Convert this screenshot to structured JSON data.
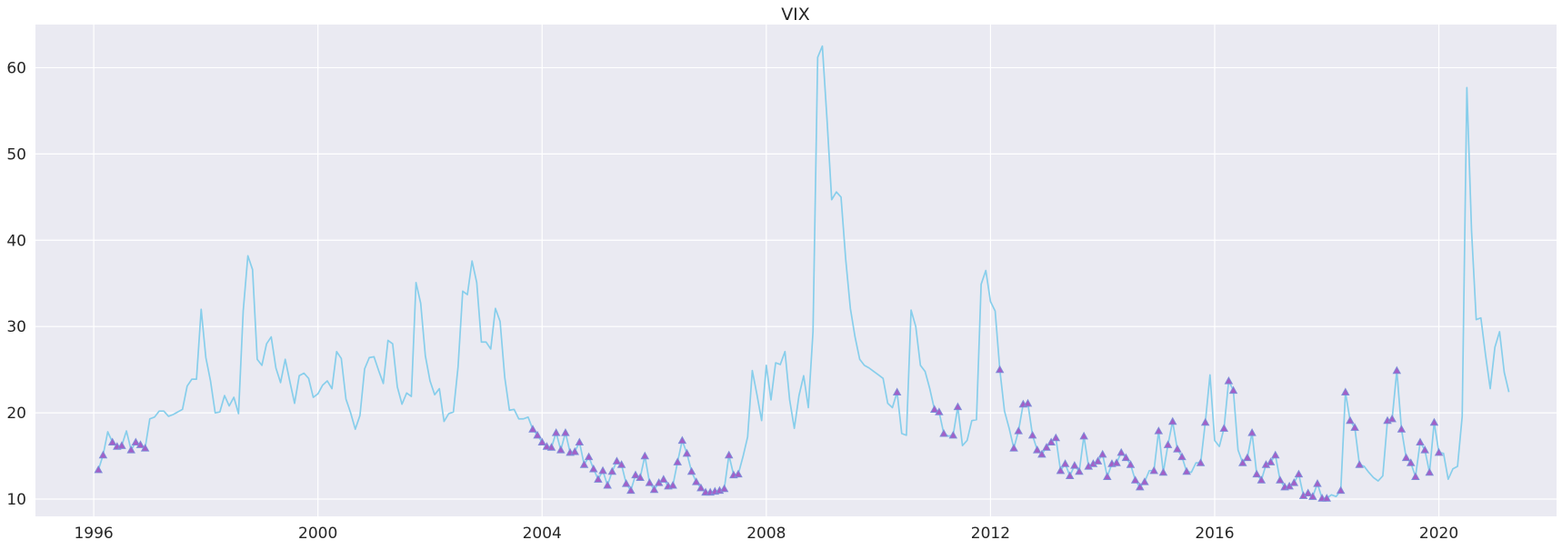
{
  "chart_data": {
    "type": "line",
    "title": "VIX",
    "xlabel": "",
    "ylabel": "",
    "x_start": "1996-02",
    "x_step": "monthly",
    "xlim": [
      1994.96,
      2022.1
    ],
    "ylim": [
      8,
      65
    ],
    "grid": true,
    "legend": "none",
    "xticks": [
      1996,
      2000,
      2004,
      2008,
      2012,
      2016,
      2020
    ],
    "xtick_labels": [
      "1996",
      "2000",
      "2004",
      "2008",
      "2012",
      "2016",
      "2020"
    ],
    "yticks": [
      10,
      20,
      30,
      40,
      50,
      60
    ],
    "ytick_labels": [
      "10",
      "20",
      "30",
      "40",
      "50",
      "60"
    ],
    "series": [
      {
        "name": "",
        "color": "#87ceeb",
        "values": [
          13.4,
          15.1,
          17.8,
          16.6,
          16.1,
          16.2,
          17.9,
          15.7,
          16.6,
          16.3,
          15.9,
          19.3,
          19.5,
          20.2,
          20.2,
          19.6,
          19.8,
          20.1,
          20.4,
          23.1,
          23.9,
          23.9,
          32.0,
          26.4,
          23.7,
          20.0,
          20.1,
          22.0,
          20.8,
          21.8,
          19.9,
          31.8,
          38.2,
          36.6,
          26.2,
          25.5,
          28.0,
          28.8,
          25.2,
          23.5,
          26.2,
          23.6,
          21.1,
          24.3,
          24.6,
          24.0,
          21.8,
          22.2,
          23.2,
          23.7,
          22.8,
          27.1,
          26.3,
          21.6,
          20.0,
          18.1,
          19.7,
          25.1,
          26.4,
          26.5,
          24.9,
          23.4,
          28.4,
          28.0,
          23.0,
          21.0,
          22.3,
          21.9,
          35.1,
          32.7,
          26.6,
          23.7,
          22.1,
          22.8,
          19.0,
          19.9,
          20.1,
          25.3,
          34.1,
          33.7,
          37.6,
          35.1,
          28.2,
          28.2,
          27.4,
          32.1,
          30.6,
          24.1,
          20.3,
          20.4,
          19.3,
          19.3,
          19.5,
          18.1,
          17.4,
          16.6,
          16.1,
          16.0,
          17.7,
          15.7,
          17.7,
          15.4,
          15.5,
          16.6,
          14.0,
          14.9,
          13.5,
          12.3,
          13.3,
          11.6,
          13.2,
          14.4,
          14.0,
          11.8,
          11.0,
          12.8,
          12.5,
          15.0,
          11.9,
          11.1,
          11.9,
          12.3,
          11.5,
          11.6,
          14.3,
          16.8,
          15.3,
          13.2,
          12.0,
          11.3,
          10.8,
          10.8,
          10.9,
          11.0,
          11.2,
          15.1,
          12.8,
          12.9,
          14.9,
          17.2,
          24.9,
          22.1,
          19.1,
          25.5,
          21.5,
          25.8,
          25.6,
          27.1,
          21.5,
          18.2,
          22.0,
          24.3,
          20.6,
          29.4,
          61.2,
          62.5,
          54.0,
          44.7,
          45.6,
          45.0,
          37.8,
          32.1,
          28.8,
          26.2,
          25.5,
          25.2,
          24.8,
          24.4,
          24.0,
          21.1,
          20.6,
          22.4,
          17.6,
          17.4,
          31.9,
          30.0,
          25.5,
          24.8,
          22.8,
          20.4,
          20.1,
          17.6,
          17.3,
          17.4,
          20.7,
          16.2,
          16.8,
          19.1,
          19.2,
          34.9,
          36.5,
          32.9,
          31.8,
          25.0,
          20.2,
          18.2,
          15.9,
          17.9,
          21.0,
          21.1,
          17.4,
          15.7,
          15.2,
          16.0,
          16.6,
          17.1,
          13.3,
          14.1,
          12.7,
          13.9,
          13.2,
          17.3,
          13.8,
          14.1,
          14.4,
          15.2,
          12.6,
          14.1,
          14.2,
          15.4,
          14.8,
          14.0,
          12.2,
          11.4,
          12.0,
          13.3,
          13.3,
          17.9,
          13.1,
          16.3,
          19.0,
          15.8,
          14.9,
          13.2,
          13.1,
          14.2,
          14.2,
          18.9,
          24.4,
          16.8,
          16.1,
          18.2,
          23.7,
          22.6,
          15.7,
          14.2,
          14.8,
          17.7,
          12.9,
          12.2,
          14.0,
          14.3,
          15.1,
          12.2,
          11.4,
          11.5,
          11.9,
          12.9,
          10.4,
          10.7,
          10.3,
          11.8,
          10.1,
          10.1,
          10.5,
          10.3,
          11.0,
          22.4,
          19.1,
          18.3,
          14.0,
          13.8,
          13.1,
          12.5,
          12.1,
          12.7,
          19.1,
          19.3,
          24.9,
          18.1,
          14.8,
          14.2,
          12.6,
          16.6,
          15.7,
          13.1,
          18.9,
          15.4,
          15.3,
          12.3,
          13.5,
          13.8,
          19.6,
          57.7,
          41.1,
          30.8,
          31.0,
          26.7,
          22.8,
          27.6,
          29.4,
          24.7,
          22.4
        ]
      }
    ],
    "markers": {
      "shape": "triangle",
      "fill": "#a35fc7",
      "edge": "#7d8fd9",
      "x": [
        "1996-02",
        "1996-03",
        "1996-05",
        "1996-06",
        "1996-07",
        "1996-09",
        "1996-10",
        "1996-11",
        "1996-12",
        "2003-11",
        "2003-12",
        "2004-01",
        "2004-02",
        "2004-03",
        "2004-04",
        "2004-05",
        "2004-06",
        "2004-07",
        "2004-08",
        "2004-09",
        "2004-10",
        "2004-11",
        "2004-12",
        "2005-01",
        "2005-02",
        "2005-03",
        "2005-04",
        "2005-05",
        "2005-06",
        "2005-07",
        "2005-08",
        "2005-09",
        "2005-10",
        "2005-11",
        "2005-12",
        "2006-01",
        "2006-02",
        "2006-03",
        "2006-04",
        "2006-05",
        "2006-06",
        "2006-07",
        "2006-08",
        "2006-09",
        "2006-10",
        "2006-11",
        "2006-12",
        "2007-01",
        "2007-02",
        "2007-03",
        "2007-04",
        "2007-05",
        "2007-06",
        "2007-07",
        "2010-05",
        "2011-01",
        "2011-02",
        "2011-03",
        "2011-05",
        "2011-06",
        "2012-03",
        "2012-06",
        "2012-07",
        "2012-08",
        "2012-09",
        "2012-10",
        "2012-11",
        "2012-12",
        "2013-01",
        "2013-02",
        "2013-03",
        "2013-04",
        "2013-05",
        "2013-06",
        "2013-07",
        "2013-08",
        "2013-09",
        "2013-10",
        "2013-11",
        "2013-12",
        "2014-01",
        "2014-02",
        "2014-03",
        "2014-04",
        "2014-05",
        "2014-06",
        "2014-07",
        "2014-08",
        "2014-09",
        "2014-10",
        "2014-12",
        "2015-01",
        "2015-02",
        "2015-03",
        "2015-04",
        "2015-05",
        "2015-06",
        "2015-07",
        "2015-10",
        "2015-11",
        "2016-03",
        "2016-04",
        "2016-05",
        "2016-07",
        "2016-08",
        "2016-09",
        "2016-10",
        "2016-11",
        "2016-12",
        "2017-01",
        "2017-02",
        "2017-03",
        "2017-04",
        "2017-05",
        "2017-06",
        "2017-07",
        "2017-08",
        "2017-09",
        "2017-10",
        "2017-11",
        "2017-12",
        "2018-01",
        "2018-04",
        "2018-05",
        "2018-06",
        "2018-07",
        "2018-08",
        "2019-02",
        "2019-03",
        "2019-04",
        "2019-05",
        "2019-06",
        "2019-07",
        "2019-08",
        "2019-09",
        "2019-10",
        "2019-11",
        "2019-12",
        "2020-01"
      ]
    }
  }
}
